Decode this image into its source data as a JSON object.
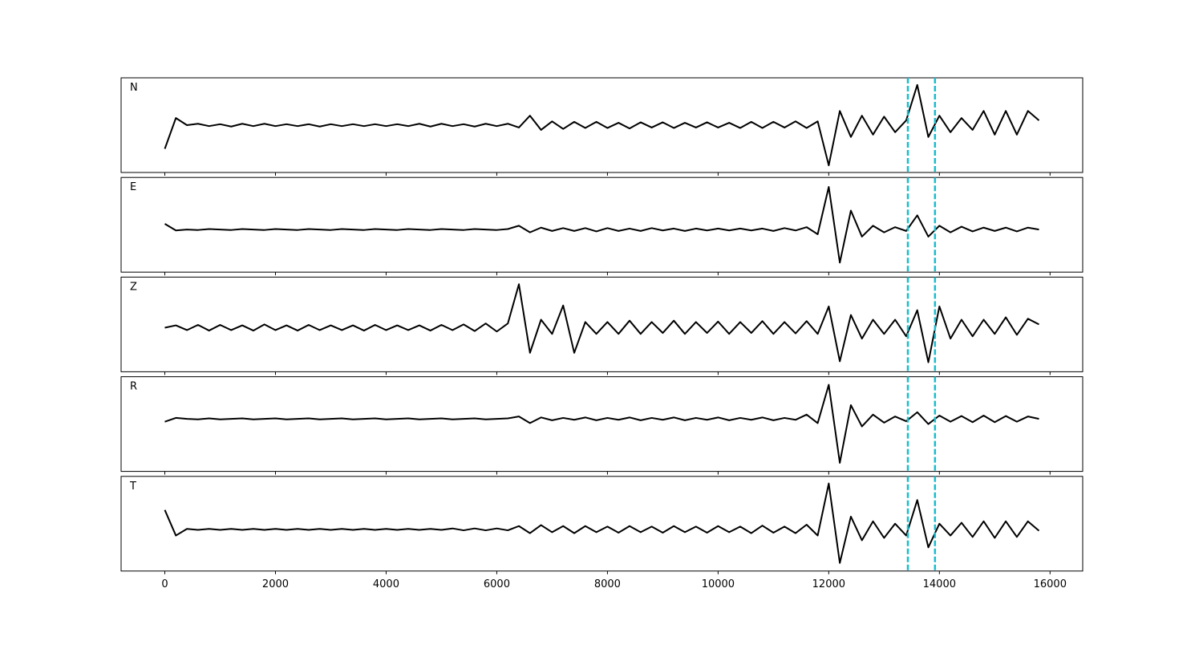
{
  "chart_data": {
    "type": "line",
    "x": [
      0,
      200,
      400,
      600,
      800,
      1000,
      1200,
      1400,
      1600,
      1800,
      2000,
      2200,
      2400,
      2600,
      2800,
      3000,
      3200,
      3400,
      3600,
      3800,
      4000,
      4200,
      4400,
      4600,
      4800,
      5000,
      5200,
      5400,
      5600,
      5800,
      6000,
      6200,
      6400,
      6600,
      6800,
      7000,
      7200,
      7400,
      7600,
      7800,
      8000,
      8200,
      8400,
      8600,
      8800,
      9000,
      9200,
      9400,
      9600,
      9800,
      10000,
      10200,
      10400,
      10600,
      10800,
      11000,
      11200,
      11400,
      11600,
      11800,
      12000,
      12200,
      12400,
      12600,
      12800,
      13000,
      13200,
      13400,
      13600,
      13800,
      14000,
      14200,
      14400,
      14600,
      14800,
      15000,
      15200,
      15400,
      15600,
      15800
    ],
    "xlim": [
      -790,
      16590
    ],
    "xticks": [
      0,
      2000,
      4000,
      6000,
      8000,
      10000,
      12000,
      14000,
      16000
    ],
    "ylim": [
      -1,
      1
    ],
    "series": [
      {
        "name": "N",
        "color": "#000000",
        "values": [
          -0.5,
          0.15,
          0.0,
          0.03,
          -0.02,
          0.02,
          -0.03,
          0.03,
          -0.02,
          0.03,
          -0.02,
          0.02,
          -0.02,
          0.02,
          -0.03,
          0.02,
          -0.02,
          0.02,
          -0.02,
          0.02,
          -0.02,
          0.02,
          -0.02,
          0.03,
          -0.03,
          0.03,
          -0.02,
          0.02,
          -0.03,
          0.03,
          -0.02,
          0.03,
          -0.05,
          0.2,
          -0.1,
          0.08,
          -0.08,
          0.07,
          -0.06,
          0.07,
          -0.06,
          0.05,
          -0.07,
          0.06,
          -0.05,
          0.06,
          -0.06,
          0.05,
          -0.05,
          0.06,
          -0.05,
          0.05,
          -0.06,
          0.07,
          -0.06,
          0.07,
          -0.05,
          0.08,
          -0.06,
          0.08,
          -0.85,
          0.3,
          -0.25,
          0.2,
          -0.2,
          0.18,
          -0.15,
          0.1,
          0.85,
          -0.25,
          0.2,
          -0.15,
          0.15,
          -0.1,
          0.3,
          -0.2,
          0.3,
          -0.2,
          0.3,
          0.1
        ]
      },
      {
        "name": "E",
        "color": "#000000",
        "values": [
          0.02,
          -0.12,
          -0.1,
          -0.11,
          -0.09,
          -0.1,
          -0.11,
          -0.09,
          -0.1,
          -0.11,
          -0.09,
          -0.1,
          -0.11,
          -0.09,
          -0.1,
          -0.11,
          -0.09,
          -0.1,
          -0.11,
          -0.09,
          -0.1,
          -0.11,
          -0.09,
          -0.1,
          -0.11,
          -0.09,
          -0.1,
          -0.11,
          -0.09,
          -0.1,
          -0.11,
          -0.09,
          -0.02,
          -0.16,
          -0.06,
          -0.13,
          -0.07,
          -0.13,
          -0.07,
          -0.14,
          -0.07,
          -0.13,
          -0.08,
          -0.13,
          -0.07,
          -0.12,
          -0.08,
          -0.13,
          -0.08,
          -0.12,
          -0.08,
          -0.12,
          -0.08,
          -0.12,
          -0.08,
          -0.13,
          -0.07,
          -0.12,
          -0.05,
          -0.2,
          0.8,
          -0.8,
          0.3,
          -0.25,
          -0.02,
          -0.16,
          -0.05,
          -0.13,
          0.2,
          -0.25,
          -0.02,
          -0.16,
          -0.04,
          -0.14,
          -0.06,
          -0.13,
          -0.06,
          -0.14,
          -0.06,
          -0.1
        ]
      },
      {
        "name": "Z",
        "color": "#000000",
        "values": [
          -0.07,
          -0.02,
          -0.12,
          -0.01,
          -0.13,
          -0.01,
          -0.12,
          -0.02,
          -0.13,
          0.0,
          -0.12,
          -0.02,
          -0.13,
          -0.01,
          -0.12,
          -0.02,
          -0.12,
          -0.02,
          -0.13,
          -0.01,
          -0.12,
          -0.02,
          -0.12,
          -0.02,
          -0.13,
          -0.01,
          -0.12,
          0.0,
          -0.14,
          0.02,
          -0.15,
          0.02,
          0.85,
          -0.6,
          0.1,
          -0.2,
          0.4,
          -0.6,
          0.05,
          -0.2,
          0.05,
          -0.2,
          0.08,
          -0.2,
          0.05,
          -0.18,
          0.08,
          -0.2,
          0.05,
          -0.18,
          0.06,
          -0.2,
          0.05,
          -0.18,
          0.07,
          -0.2,
          0.05,
          -0.19,
          0.07,
          -0.2,
          0.38,
          -0.78,
          0.2,
          -0.3,
          0.1,
          -0.2,
          0.1,
          -0.25,
          0.3,
          -0.8,
          0.38,
          -0.3,
          0.1,
          -0.25,
          0.1,
          -0.2,
          0.15,
          -0.22,
          0.12,
          0.0
        ]
      },
      {
        "name": "R",
        "color": "#000000",
        "values": [
          0.05,
          0.13,
          0.11,
          0.1,
          0.12,
          0.1,
          0.11,
          0.12,
          0.1,
          0.11,
          0.12,
          0.1,
          0.11,
          0.12,
          0.1,
          0.11,
          0.12,
          0.1,
          0.11,
          0.12,
          0.1,
          0.11,
          0.12,
          0.1,
          0.11,
          0.12,
          0.1,
          0.11,
          0.12,
          0.1,
          0.11,
          0.12,
          0.16,
          0.02,
          0.14,
          0.08,
          0.13,
          0.09,
          0.14,
          0.08,
          0.13,
          0.09,
          0.14,
          0.08,
          0.13,
          0.09,
          0.14,
          0.08,
          0.13,
          0.09,
          0.14,
          0.08,
          0.13,
          0.09,
          0.14,
          0.08,
          0.13,
          0.09,
          0.2,
          0.02,
          0.83,
          -0.82,
          0.4,
          -0.05,
          0.2,
          0.03,
          0.16,
          0.06,
          0.25,
          0.0,
          0.18,
          0.05,
          0.17,
          0.04,
          0.18,
          0.04,
          0.17,
          0.05,
          0.16,
          0.11
        ]
      },
      {
        "name": "T",
        "color": "#000000",
        "values": [
          0.29,
          -0.25,
          -0.11,
          -0.13,
          -0.11,
          -0.13,
          -0.11,
          -0.13,
          -0.11,
          -0.13,
          -0.11,
          -0.13,
          -0.11,
          -0.13,
          -0.11,
          -0.13,
          -0.11,
          -0.13,
          -0.11,
          -0.13,
          -0.11,
          -0.13,
          -0.11,
          -0.13,
          -0.11,
          -0.13,
          -0.1,
          -0.14,
          -0.1,
          -0.14,
          -0.1,
          -0.14,
          -0.05,
          -0.2,
          -0.03,
          -0.18,
          -0.05,
          -0.2,
          -0.05,
          -0.18,
          -0.06,
          -0.19,
          -0.05,
          -0.18,
          -0.06,
          -0.19,
          -0.05,
          -0.18,
          -0.06,
          -0.19,
          -0.05,
          -0.18,
          -0.06,
          -0.2,
          -0.04,
          -0.19,
          -0.06,
          -0.2,
          -0.02,
          -0.25,
          0.85,
          -0.83,
          0.15,
          -0.35,
          0.05,
          -0.3,
          0.0,
          -0.25,
          0.5,
          -0.5,
          0.0,
          -0.25,
          0.02,
          -0.28,
          0.05,
          -0.3,
          0.05,
          -0.28,
          0.05,
          -0.15
        ]
      }
    ],
    "vlines": {
      "values": [
        13430,
        13920
      ],
      "color": "#17becf",
      "style": "dashed"
    }
  }
}
